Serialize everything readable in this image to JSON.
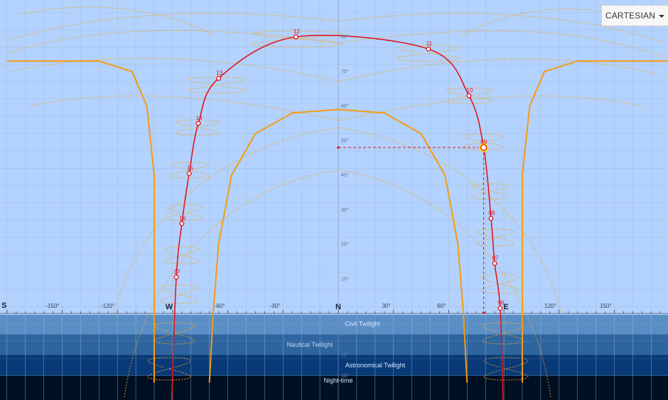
{
  "view_mode": "CARTESIAN",
  "colors": {
    "sky": "#b3d2fd",
    "grid": "#9fb8d8",
    "civil": "#5a8fc6",
    "nautical": "#2f659f",
    "astronomical": "#083a78",
    "night": "#000f22",
    "sun_path": "#e0161e",
    "analemma": "#f5a623",
    "envelope": "#f59b12",
    "highlight": "#ffe000"
  },
  "chart_data": {
    "type": "line",
    "x_axis": {
      "range": [
        -180,
        180
      ],
      "tick_labels": [
        "S",
        "-150°",
        "-120°",
        "W",
        "-60°",
        "-30°",
        "N",
        "30°",
        "60°",
        "E",
        "120°",
        "150°"
      ],
      "tick_values": [
        -180,
        -150,
        -120,
        -90,
        -60,
        -30,
        0,
        30,
        60,
        90,
        120,
        150
      ]
    },
    "y_axis": {
      "range": [
        -20,
        90
      ],
      "tick_labels": [
        "80°",
        "70°",
        "60°",
        "50°",
        "40°",
        "30°",
        "20°",
        "10°",
        "6°",
        "12°",
        "18°"
      ],
      "tick_values": [
        80,
        70,
        60,
        50,
        40,
        30,
        20,
        10,
        -6,
        -12,
        -18
      ]
    },
    "bands": [
      {
        "name": "Civil Twilight",
        "from": -6,
        "to": 0
      },
      {
        "name": "Nautical Twilight",
        "from": -12,
        "to": -6
      },
      {
        "name": "Astronomical Twilight",
        "from": -18,
        "to": -12
      },
      {
        "name": "Night-time",
        "from": -20,
        "to": -18
      }
    ],
    "sun_path": {
      "hour_points": [
        {
          "label": "06",
          "azimuth": 88,
          "altitude": 1.5
        },
        {
          "label": "07",
          "azimuth": 85,
          "altitude": 14.5
        },
        {
          "label": "08",
          "azimuth": 83,
          "altitude": 27.5
        },
        {
          "label": "09",
          "azimuth": 79,
          "altitude": 48
        },
        {
          "label": "10",
          "azimuth": 71,
          "altitude": 63
        },
        {
          "label": "11",
          "azimuth": 49,
          "altitude": 76.5
        },
        {
          "label": "12",
          "azimuth": -23,
          "altitude": 80
        },
        {
          "label": "13",
          "azimuth": -65,
          "altitude": 68
        },
        {
          "label": "14",
          "azimuth": -76,
          "altitude": 55
        },
        {
          "label": "15",
          "azimuth": -81,
          "altitude": 40.5
        },
        {
          "label": "16",
          "azimuth": -85,
          "altitude": 26
        },
        {
          "label": "17",
          "azimuth": -88,
          "altitude": 10.5
        }
      ],
      "current": {
        "label": "09",
        "azimuth": 79,
        "altitude": 48
      }
    },
    "envelopes": [
      {
        "name": "summer",
        "points": [
          [
            -180,
            73
          ],
          [
            -130,
            73
          ],
          [
            -112,
            70
          ],
          [
            -104,
            60
          ],
          [
            -100,
            40
          ],
          [
            -100,
            20
          ],
          [
            -100,
            -20
          ]
        ]
      },
      {
        "name": "winter",
        "points": [
          [
            -70,
            -20
          ],
          [
            -68,
            0
          ],
          [
            -65,
            20
          ],
          [
            -58,
            40
          ],
          [
            -45,
            52
          ],
          [
            -25,
            58
          ],
          [
            0,
            59
          ],
          [
            25,
            58
          ],
          [
            45,
            52
          ],
          [
            58,
            40
          ],
          [
            65,
            20
          ],
          [
            68,
            0
          ],
          [
            70,
            -20
          ]
        ]
      }
    ]
  }
}
